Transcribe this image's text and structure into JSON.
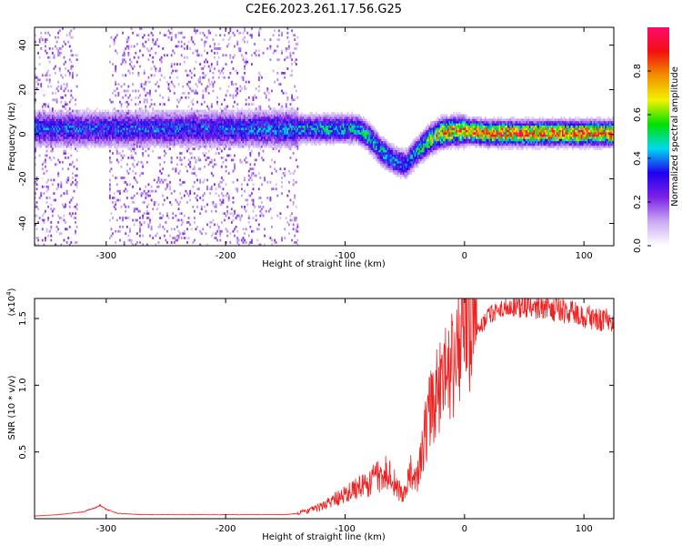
{
  "title": "C2E6.2023.261.17.56.G25",
  "chart_data": [
    {
      "type": "heatmap",
      "xlabel": "Height of straight line (km)",
      "ylabel": "Frequency (Hz)",
      "xlim": [
        -360,
        125
      ],
      "ylim": [
        -50,
        48
      ],
      "x_ticks": [
        "-300",
        "-200",
        "-100",
        "0",
        "100"
      ],
      "x_tick_values": [
        -300,
        -200,
        -100,
        0,
        100
      ],
      "y_ticks": [
        "40",
        "20",
        "0",
        "-20",
        "-40"
      ],
      "y_tick_values": [
        40,
        20,
        0,
        -20,
        -40
      ],
      "colorbar": {
        "label": "Normalized spectral amplitude",
        "range": [
          0,
          1
        ],
        "ticks": [
          "0.0",
          "0.2",
          "0.4",
          "0.6",
          "0.8"
        ],
        "tick_values": [
          0,
          0.2,
          0.4,
          0.6,
          0.8
        ],
        "colors": [
          "#ffffff",
          "#c9a8f2",
          "#7b22e6",
          "#2000f0",
          "#00d8f0",
          "#00e000",
          "#f2f200",
          "#f29000",
          "#f21010",
          "#ff0a6e"
        ]
      },
      "ridge": {
        "x": [
          -360,
          -300,
          -200,
          -150,
          -120,
          -100,
          -90,
          -80,
          -70,
          -60,
          -50,
          -40,
          -30,
          -20,
          -10,
          0,
          20,
          50,
          100,
          125
        ],
        "freq": [
          2,
          2,
          2,
          2,
          2,
          2,
          2,
          -2,
          -8,
          -12,
          -14,
          -8,
          -3,
          0,
          1,
          1,
          0,
          0,
          0,
          0
        ],
        "amplitude": [
          0.4,
          0.4,
          0.4,
          0.45,
          0.5,
          0.5,
          0.5,
          0.55,
          0.5,
          0.45,
          0.45,
          0.5,
          0.7,
          0.85,
          0.9,
          0.9,
          0.95,
          0.95,
          0.95,
          0.95
        ]
      }
    },
    {
      "type": "line",
      "xlabel": "Height of straight line (km)",
      "ylabel": "SNR (10 * v/v)",
      "y_multiplier_label": "(x10",
      "y_multiplier_exp": "4",
      "xlim": [
        -360,
        125
      ],
      "ylim": [
        0,
        1.65
      ],
      "x_ticks": [
        "-300",
        "-200",
        "-100",
        "0",
        "100"
      ],
      "x_tick_values": [
        -300,
        -200,
        -100,
        0,
        100
      ],
      "y_ticks": [
        "1.5",
        "1.0",
        "0.5"
      ],
      "y_tick_values": [
        1.5,
        1.0,
        0.5
      ],
      "color": "#ee2222",
      "series": [
        {
          "x": [
            -360,
            -340,
            -320,
            -310,
            -305,
            -300,
            -290,
            -270,
            -250,
            -200,
            -150,
            -130,
            -120,
            -110,
            -100,
            -90,
            -80,
            -75,
            -70,
            -65,
            -60,
            -55,
            -50,
            -45,
            -40,
            -35,
            -30,
            -25,
            -20,
            -15,
            -10,
            -5,
            0,
            10,
            20,
            30,
            40,
            50,
            60,
            70,
            80,
            90,
            100,
            110,
            125
          ],
          "y": [
            0.02,
            0.03,
            0.05,
            0.08,
            0.1,
            0.07,
            0.04,
            0.03,
            0.03,
            0.03,
            0.03,
            0.05,
            0.08,
            0.12,
            0.15,
            0.2,
            0.22,
            0.28,
            0.26,
            0.3,
            0.25,
            0.18,
            0.15,
            0.3,
            0.25,
            0.45,
            0.65,
            0.75,
            0.85,
            0.95,
            1.0,
            1.1,
            1.2,
            1.4,
            1.52,
            1.58,
            1.6,
            1.6,
            1.59,
            1.58,
            1.56,
            1.54,
            1.52,
            1.5,
            1.48
          ]
        }
      ]
    }
  ]
}
